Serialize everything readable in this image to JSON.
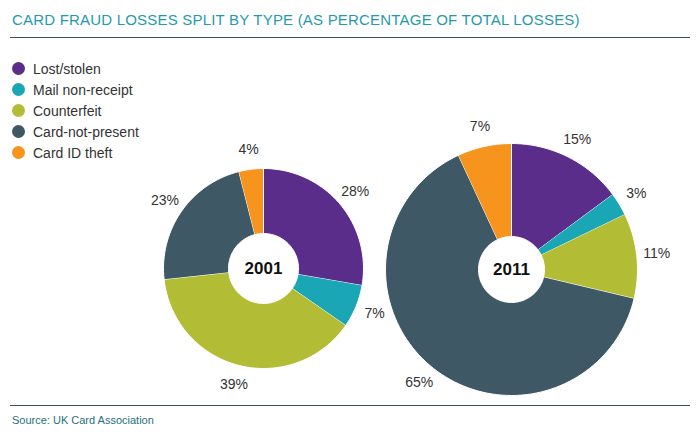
{
  "chart_data": {
    "type": "pie",
    "title": "CARD FRAUD LOSSES SPLIT BY TYPE (AS PERCENTAGE OF TOTAL LOSSES)",
    "source": "Source: UK Card Association",
    "categories": [
      "Lost/stolen",
      "Mail non-receipt",
      "Counterfeit",
      "Card-not-present",
      "Card ID theft"
    ],
    "colors": [
      "#5b2d8a",
      "#1ba6b6",
      "#b3bc35",
      "#3f5866",
      "#f7941d"
    ],
    "series": [
      {
        "name": "2001",
        "values": [
          28,
          7,
          39,
          23,
          4
        ],
        "value_labels": [
          "28%",
          "7%",
          "39%",
          "23%",
          "4%"
        ]
      },
      {
        "name": "2011",
        "values": [
          15,
          3,
          11,
          65,
          7
        ],
        "value_labels": [
          "15%",
          "3%",
          "11%",
          "65%",
          "7%"
        ]
      }
    ],
    "data_labels": true,
    "legend": "top-left"
  }
}
